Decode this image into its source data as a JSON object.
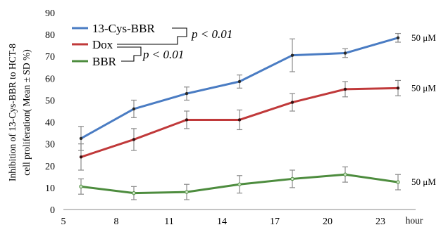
{
  "chart_data": {
    "type": "line",
    "xlabel": "hour",
    "ylabel_lines": [
      "Inhibition of 13-Cys-BBR to HCT-8",
      "cell proliferation( Mean ± SD %)"
    ],
    "xlim": [
      5,
      25
    ],
    "ylim": [
      0,
      90
    ],
    "x_ticks": [
      "5",
      "8",
      "11",
      "14",
      "17",
      "20",
      "23"
    ],
    "y_ticks": [
      "0",
      "10",
      "20",
      "30",
      "40",
      "50",
      "60",
      "70",
      "80",
      "90"
    ],
    "grid": false,
    "legend_position": "top-left",
    "series": [
      {
        "name": "13-Cys-BBR",
        "color": "#4a7cc3",
        "x": [
          6,
          9,
          12,
          15,
          18,
          21,
          24
        ],
        "y": [
          32.5,
          46,
          53,
          58.5,
          70.5,
          71.5,
          78.5
        ],
        "err": [
          5.5,
          4,
          3,
          3,
          7.5,
          2,
          2
        ],
        "end_label": "50 μM"
      },
      {
        "name": "Dox",
        "color": "#c0393a",
        "x": [
          6,
          9,
          12,
          15,
          18,
          21,
          24
        ],
        "y": [
          24,
          32,
          41,
          41,
          49,
          55,
          55.5
        ],
        "err": [
          6,
          5,
          4,
          4.5,
          4,
          3.5,
          3.5
        ],
        "end_label": "50 μM"
      },
      {
        "name": "BBR",
        "color": "#4d8c3e",
        "x": [
          6,
          9,
          12,
          15,
          18,
          21,
          24
        ],
        "y": [
          10.5,
          7.5,
          8,
          11.5,
          14,
          16,
          12.5
        ],
        "err": [
          3.5,
          3,
          3.5,
          4,
          4,
          3.5,
          3.5
        ],
        "end_label": "50 μM"
      }
    ],
    "annotations": [
      {
        "text": "p < 0.01",
        "between": [
          "13-Cys-BBR",
          "Dox"
        ]
      },
      {
        "text": "p < 0.01",
        "between": [
          "Dox",
          "BBR"
        ]
      }
    ]
  }
}
